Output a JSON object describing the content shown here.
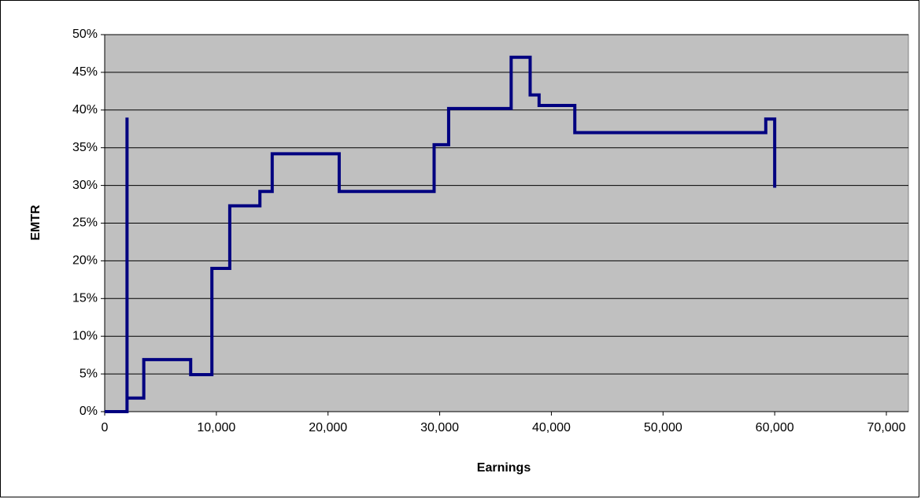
{
  "chart_data": {
    "type": "line",
    "x_label": "Earnings",
    "y_label": "EMTR",
    "series": [
      {
        "color": "#000080",
        "x": [
          0,
          2000,
          2000,
          2000,
          3500,
          3500,
          7700,
          7700,
          9600,
          9600,
          11200,
          11200,
          13900,
          13900,
          15000,
          15000,
          21000,
          21000,
          29500,
          29500,
          30800,
          30800,
          36400,
          36400,
          38100,
          38100,
          38900,
          38900,
          42100,
          42100,
          59200,
          59200,
          60000,
          60000
        ],
        "values": [
          0,
          0,
          39,
          1.8,
          1.8,
          6.9,
          6.9,
          4.9,
          4.9,
          19,
          19,
          27.3,
          27.3,
          29.2,
          29.2,
          34.2,
          34.2,
          29.2,
          29.2,
          35.4,
          35.4,
          40.2,
          40.2,
          47,
          47,
          42,
          42,
          40.6,
          40.6,
          37,
          37,
          38.8,
          38.8,
          29.7
        ]
      }
    ],
    "xlim": [
      0,
      70000
    ],
    "xticks": [
      0,
      {
        "value": 10000,
        "label": "10,000"
      },
      {
        "value": 20000,
        "label": "20,000"
      },
      {
        "value": 30000,
        "label": "30,000"
      },
      {
        "value": 40000,
        "label": "40,000"
      },
      {
        "value": 50000,
        "label": "50,000"
      },
      {
        "value": 60000,
        "label": "60,000"
      },
      {
        "value": 70000,
        "label": "70,000"
      }
    ],
    "ylim": [
      0,
      50
    ],
    "yticks": [
      {
        "value": 0,
        "label": "0%"
      },
      {
        "value": 5,
        "label": "5%"
      },
      {
        "value": 10,
        "label": "10%"
      },
      {
        "value": 15,
        "label": "15%"
      },
      {
        "value": 20,
        "label": "20%"
      },
      {
        "value": 25,
        "label": "25%"
      },
      {
        "value": 30,
        "label": "30%"
      },
      {
        "value": 35,
        "label": "35%"
      },
      {
        "value": 40,
        "label": "40%"
      },
      {
        "value": 45,
        "label": "45%"
      },
      {
        "value": 50,
        "label": "50%"
      }
    ],
    "grid": true,
    "plot_background": "#c0c0c0"
  }
}
